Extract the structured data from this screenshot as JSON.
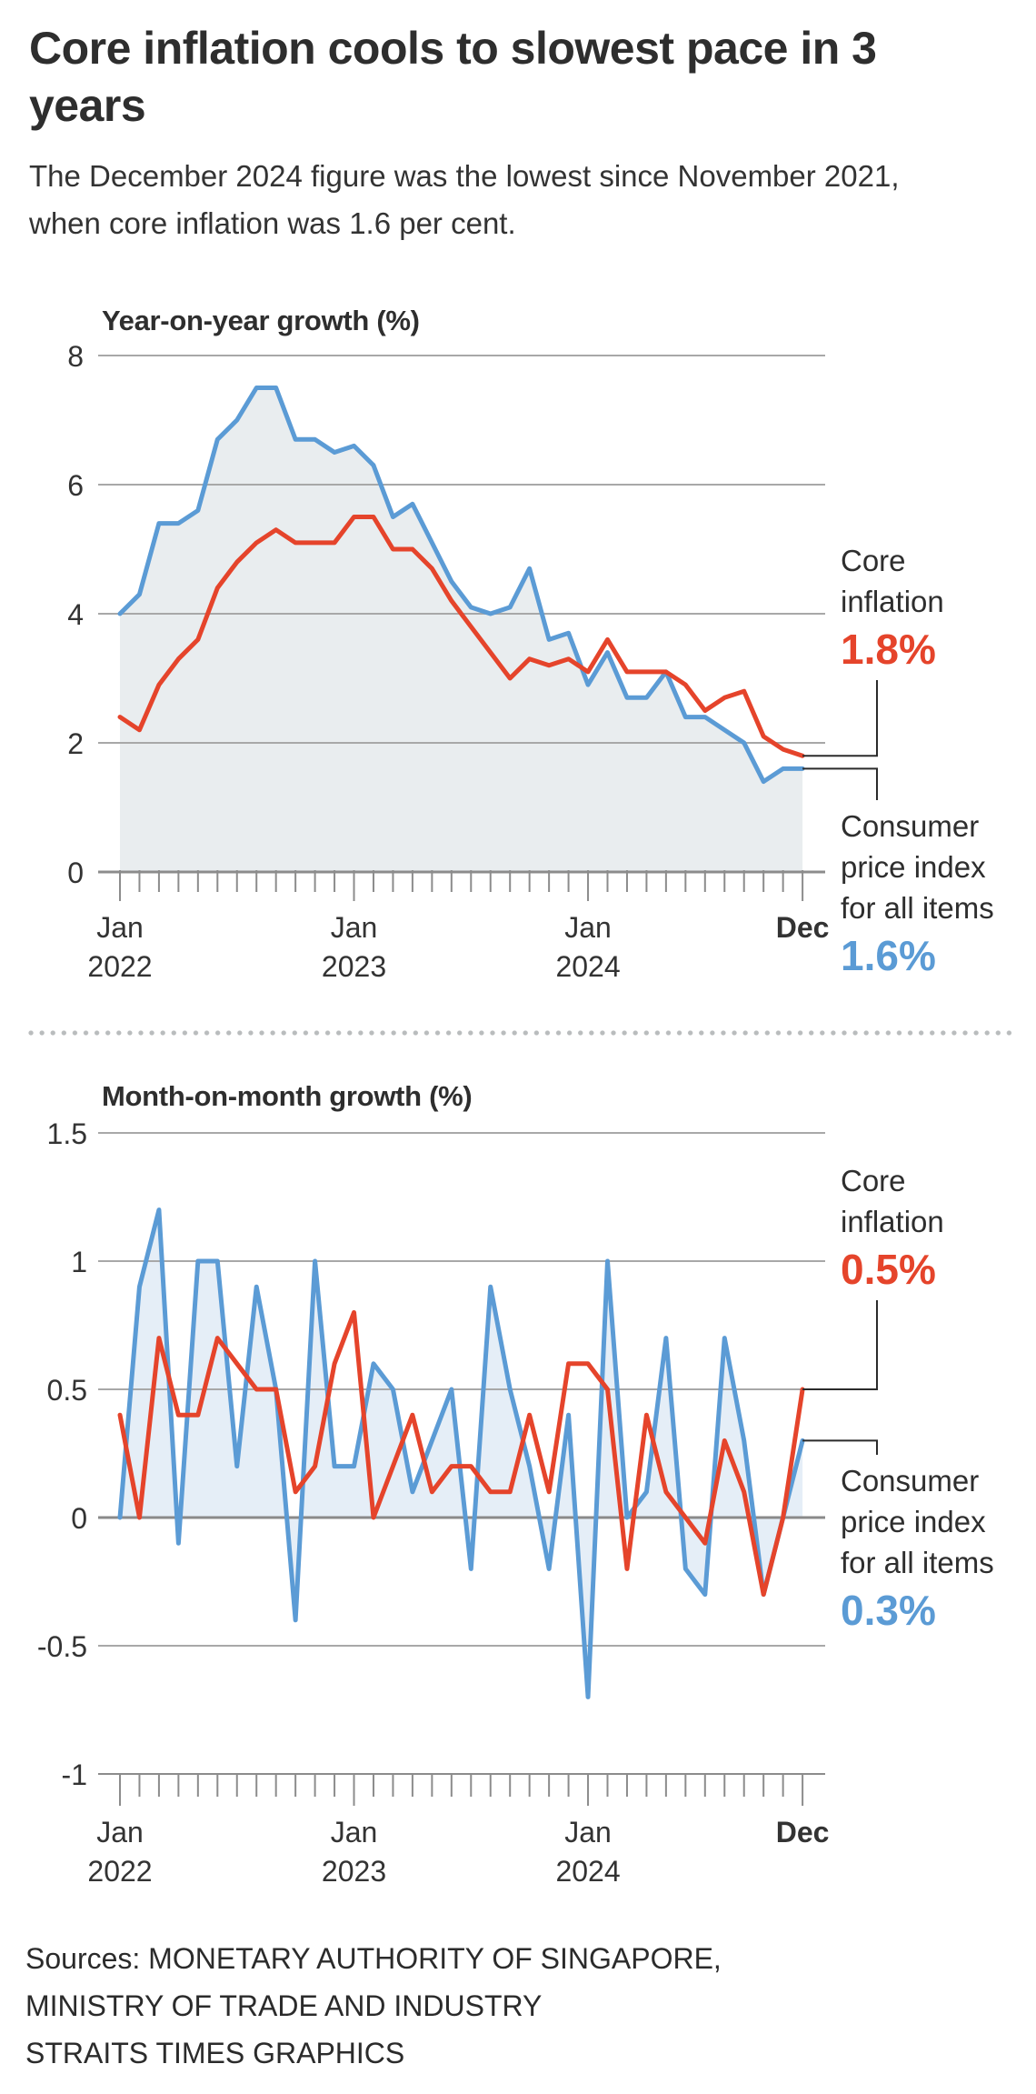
{
  "header": {
    "title": "Core inflation cools to slowest pace in 3 years",
    "subtitle": "The December 2024 figure was the lowest since November 2021, when core inflation was 1.6 per cent."
  },
  "colors": {
    "core": "#e5442b",
    "cpi": "#5b9bd5",
    "yoy_fill": "#e9edef",
    "mom_fill": "#e5eef7",
    "grid": "#a8a8a8",
    "axis": "#8c8c8c",
    "leader": "#2b2b2b"
  },
  "chart_data": [
    {
      "type": "line",
      "title": "Year-on-year growth (%)",
      "xlabel": "",
      "ylabel": "",
      "ylim": [
        0,
        8
      ],
      "yticks": [
        "0",
        "2",
        "4",
        "6",
        "8"
      ],
      "ytick_values": [
        0,
        2,
        4,
        6,
        8
      ],
      "grid": true,
      "x_tick_labels": [
        {
          "month_index": 0,
          "line1": "Jan",
          "line2": "2022",
          "bold": false
        },
        {
          "month_index": 12,
          "line1": "Jan",
          "line2": "2023",
          "bold": false
        },
        {
          "month_index": 24,
          "line1": "Jan",
          "line2": "2024",
          "bold": false
        },
        {
          "month_index": 35,
          "line1": "Dec",
          "line2": "",
          "bold": true
        }
      ],
      "x": [
        "2022-01",
        "2022-02",
        "2022-03",
        "2022-04",
        "2022-05",
        "2022-06",
        "2022-07",
        "2022-08",
        "2022-09",
        "2022-10",
        "2022-11",
        "2022-12",
        "2023-01",
        "2023-02",
        "2023-03",
        "2023-04",
        "2023-05",
        "2023-06",
        "2023-07",
        "2023-08",
        "2023-09",
        "2023-10",
        "2023-11",
        "2023-12",
        "2024-01",
        "2024-02",
        "2024-03",
        "2024-04",
        "2024-05",
        "2024-06",
        "2024-07",
        "2024-08",
        "2024-09",
        "2024-10",
        "2024-11",
        "2024-12"
      ],
      "series": [
        {
          "name": "Consumer price index for all items",
          "key": "cpi",
          "filled": true,
          "values": [
            4.0,
            4.3,
            5.4,
            5.4,
            5.6,
            6.7,
            7.0,
            7.5,
            7.5,
            6.7,
            6.7,
            6.5,
            6.6,
            6.3,
            5.5,
            5.7,
            5.1,
            4.5,
            4.1,
            4.0,
            4.1,
            4.7,
            3.6,
            3.7,
            2.9,
            3.4,
            2.7,
            2.7,
            3.1,
            2.4,
            2.4,
            2.2,
            2.0,
            1.4,
            1.6,
            1.6
          ]
        },
        {
          "name": "Core inflation",
          "key": "core",
          "filled": false,
          "values": [
            2.4,
            2.2,
            2.9,
            3.3,
            3.6,
            4.4,
            4.8,
            5.1,
            5.3,
            5.1,
            5.1,
            5.1,
            5.5,
            5.5,
            5.0,
            5.0,
            4.7,
            4.2,
            3.8,
            3.4,
            3.0,
            3.3,
            3.2,
            3.3,
            3.1,
            3.6,
            3.1,
            3.1,
            3.1,
            2.9,
            2.5,
            2.7,
            2.8,
            2.1,
            1.9,
            1.8
          ]
        }
      ],
      "annotations": [
        {
          "series": "core",
          "label_lines": [
            "Core",
            "inflation"
          ],
          "value": "1.8%"
        },
        {
          "series": "cpi",
          "label_lines": [
            "Consumer",
            "price index",
            "for all items"
          ],
          "value": "1.6%"
        }
      ]
    },
    {
      "type": "line",
      "title": "Month-on-month growth (%)",
      "xlabel": "",
      "ylabel": "",
      "ylim": [
        -1,
        1.5
      ],
      "yticks": [
        "-1",
        "-0.5",
        "0",
        "0.5",
        "1",
        "1.5"
      ],
      "ytick_values": [
        -1,
        -0.5,
        0,
        0.5,
        1,
        1.5
      ],
      "grid": true,
      "x_tick_labels": [
        {
          "month_index": 0,
          "line1": "Jan",
          "line2": "2022",
          "bold": false
        },
        {
          "month_index": 12,
          "line1": "Jan",
          "line2": "2023",
          "bold": false
        },
        {
          "month_index": 24,
          "line1": "Jan",
          "line2": "2024",
          "bold": false
        },
        {
          "month_index": 35,
          "line1": "Dec",
          "line2": "",
          "bold": true
        }
      ],
      "x": [
        "2022-01",
        "2022-02",
        "2022-03",
        "2022-04",
        "2022-05",
        "2022-06",
        "2022-07",
        "2022-08",
        "2022-09",
        "2022-10",
        "2022-11",
        "2022-12",
        "2023-01",
        "2023-02",
        "2023-03",
        "2023-04",
        "2023-05",
        "2023-06",
        "2023-07",
        "2023-08",
        "2023-09",
        "2023-10",
        "2023-11",
        "2023-12",
        "2024-01",
        "2024-02",
        "2024-03",
        "2024-04",
        "2024-05",
        "2024-06",
        "2024-07",
        "2024-08",
        "2024-09",
        "2024-10",
        "2024-11",
        "2024-12"
      ],
      "series": [
        {
          "name": "Consumer price index for all items",
          "key": "cpi",
          "filled": true,
          "values": [
            0.0,
            0.9,
            1.2,
            -0.1,
            1.0,
            1.0,
            0.2,
            0.9,
            0.5,
            -0.4,
            1.0,
            0.2,
            0.2,
            0.6,
            0.5,
            0.1,
            0.3,
            0.5,
            -0.2,
            0.9,
            0.5,
            0.2,
            -0.2,
            0.4,
            -0.7,
            1.0,
            0.0,
            0.1,
            0.7,
            -0.2,
            -0.3,
            0.7,
            0.3,
            -0.3,
            0.0,
            0.3
          ]
        },
        {
          "name": "Core inflation",
          "key": "core",
          "filled": false,
          "values": [
            0.4,
            0.0,
            0.7,
            0.4,
            0.4,
            0.7,
            0.6,
            0.5,
            0.5,
            0.1,
            0.2,
            0.6,
            0.8,
            0.0,
            0.2,
            0.4,
            0.1,
            0.2,
            0.2,
            0.1,
            0.1,
            0.4,
            0.1,
            0.6,
            0.6,
            0.5,
            -0.2,
            0.4,
            0.1,
            0.0,
            -0.1,
            0.3,
            0.1,
            -0.3,
            0.0,
            0.5
          ]
        }
      ],
      "annotations": [
        {
          "series": "core",
          "label_lines": [
            "Core",
            "inflation"
          ],
          "value": "0.5%"
        },
        {
          "series": "cpi",
          "label_lines": [
            "Consumer",
            "price index",
            "for all items"
          ],
          "value": "0.3%"
        }
      ]
    }
  ],
  "footer": {
    "sources": [
      "Sources: MONETARY AUTHORITY OF SINGAPORE,",
      "MINISTRY OF TRADE AND INDUSTRY",
      "STRAITS TIMES GRAPHICS"
    ]
  }
}
